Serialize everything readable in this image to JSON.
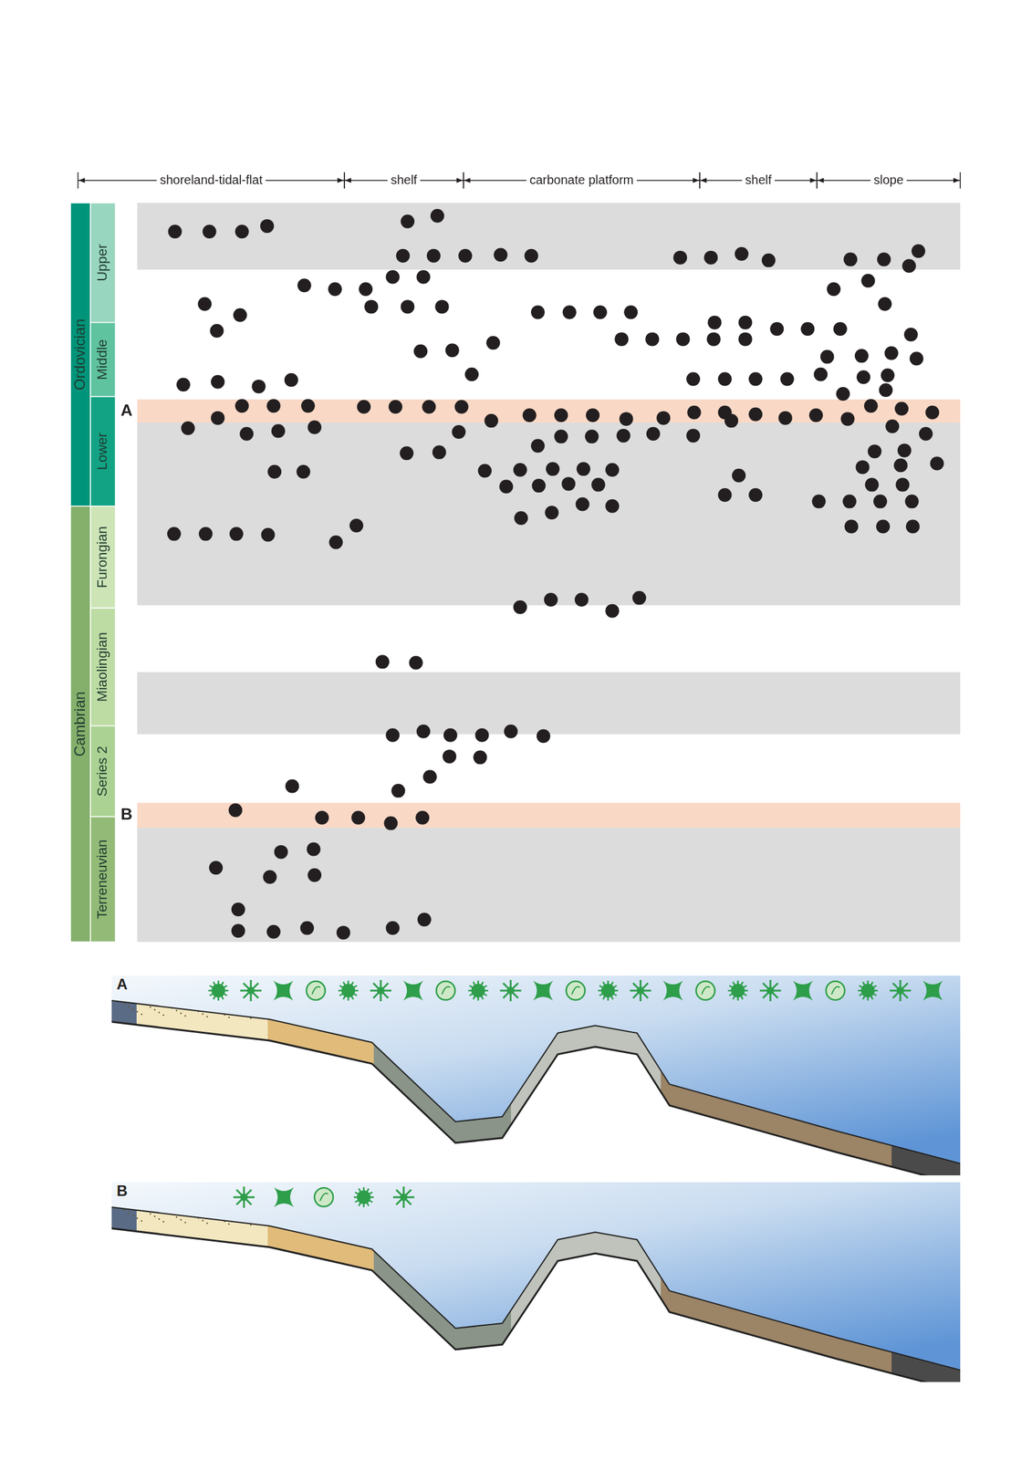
{
  "chart_data": {
    "type": "scatter",
    "tick_labels": false,
    "color": "#231f20",
    "xlim": [
      0,
      908
    ],
    "ylim": [
      0,
      797
    ],
    "zones": [
      {
        "label": "shoreland-tidal-flat",
        "from": 0,
        "to": 246
      },
      {
        "label": "shelf",
        "from": 246,
        "to": 374
      },
      {
        "label": "carbonate platform",
        "from": 374,
        "to": 628
      },
      {
        "label": "shelf",
        "from": 628,
        "to": 754
      },
      {
        "label": "slope",
        "from": 754,
        "to": 908
      }
    ],
    "systems": [
      {
        "label": "Ordovician",
        "from": 470,
        "to": 797,
        "color": "#00957a"
      },
      {
        "label": "Cambrian",
        "from": 0,
        "to": 470,
        "color": "#85b06c"
      }
    ],
    "series_units": [
      {
        "label": "Upper",
        "from": 668,
        "to": 797,
        "color": "#99d6bf"
      },
      {
        "label": "Middle",
        "from": 588,
        "to": 668,
        "color": "#5fc3a0"
      },
      {
        "label": "Lower",
        "from": 470,
        "to": 588,
        "color": "#12a384"
      },
      {
        "label": "Furongian",
        "from": 360,
        "to": 470,
        "color": "#cde5b6"
      },
      {
        "label": "Miaolingian",
        "from": 233,
        "to": 360,
        "color": "#bddca4"
      },
      {
        "label": "Series 2",
        "from": 135,
        "to": 233,
        "color": "#acd293"
      },
      {
        "label": "Terreneuvian",
        "from": 0,
        "to": 135,
        "color": "#93bb77"
      }
    ],
    "bands": [
      {
        "from": 725,
        "to": 797,
        "color": "#dcdcdc"
      },
      {
        "from": 560,
        "to": 585,
        "color": "#f9d8c6",
        "label": "A"
      },
      {
        "from": 363,
        "to": 560,
        "color": "#dcdcdc"
      },
      {
        "from": 224,
        "to": 291,
        "color": "#dcdcdc"
      },
      {
        "from": 123,
        "to": 150,
        "color": "#f9d8c6",
        "label": "B"
      },
      {
        "from": 0,
        "to": 123,
        "color": "#dcdcdc"
      }
    ],
    "x": [
      64,
      101,
      136,
      163,
      314,
      346,
      309,
      342,
      376,
      414,
      447,
      607,
      640,
      673,
      702,
      790,
      826,
      863,
      853,
      203,
      236,
      269,
      298,
      331,
      275,
      314,
      351,
      96,
      134,
      109,
      772,
      809,
      827,
      454,
      488,
      521,
      554,
      644,
      677,
      711,
      744,
      779,
      855,
      328,
      362,
      406,
      544,
      577,
      610,
      643,
      677,
      765,
      802,
      834,
      861,
      383,
      73,
      110,
      154,
      189,
      621,
      655,
      688,
      722,
      758,
      804,
      830,
      828,
      782,
      136,
      170,
      207,
      267,
      301,
      337,
      372,
      110,
      404,
      445,
      479,
      513,
      549,
      589,
      622,
      655,
      688,
      720,
      753,
      787,
      812,
      845,
      878,
      662,
      78,
      141,
      175,
      214,
      369,
      313,
      348,
      454,
      479,
      512,
      546,
      578,
      621,
      835,
      871,
      816,
      848,
      171,
      202,
      397,
      435,
      470,
      503,
      534,
      420,
      455,
      487,
      519,
      436,
      469,
      502,
      534,
      670,
      655,
      688,
      756,
      789,
      822,
      856,
      803,
      844,
      883,
      813,
      846,
      791,
      825,
      857,
      63,
      97,
      130,
      164,
      237,
      259,
      435,
      468,
      501,
      534,
      563,
      287,
      323,
      298,
      331,
      360,
      394,
      425,
      460,
      359,
      392,
      338,
      304,
      190,
      129,
      222,
      261,
      296,
      330,
      178,
      213,
      108,
      166,
      214,
      132,
      132,
      170,
      206,
      245,
      298,
      332
    ],
    "values": [
      766,
      766,
      766,
      772,
      777,
      783,
      740,
      740,
      740,
      741,
      740,
      738,
      738,
      742,
      735,
      736,
      736,
      745,
      729,
      708,
      704,
      704,
      717,
      717,
      685,
      685,
      685,
      688,
      676,
      659,
      704,
      713,
      688,
      679,
      679,
      679,
      679,
      668,
      668,
      661,
      661,
      661,
      655,
      637,
      638,
      646,
      650,
      650,
      650,
      650,
      650,
      631,
      632,
      635,
      629,
      612,
      601,
      604,
      599,
      606,
      607,
      607,
      607,
      607,
      612,
      609,
      611,
      595,
      591,
      578,
      578,
      578,
      577,
      577,
      577,
      577,
      565,
      562,
      568,
      568,
      568,
      564,
      565,
      571,
      571,
      569,
      565,
      568,
      564,
      578,
      575,
      571,
      562,
      554,
      548,
      551,
      555,
      550,
      527,
      528,
      535,
      545,
      545,
      546,
      548,
      546,
      556,
      548,
      529,
      530,
      507,
      507,
      508,
      509,
      510,
      510,
      509,
      491,
      492,
      494,
      493,
      457,
      463,
      472,
      470,
      503,
      482,
      482,
      475,
      475,
      475,
      475,
      512,
      514,
      516,
      493,
      493,
      448,
      448,
      448,
      440,
      440,
      440,
      439,
      431,
      449,
      361,
      369,
      369,
      357,
      371,
      302,
      301,
      223,
      227,
      223,
      223,
      227,
      222,
      200,
      199,
      178,
      163,
      168,
      142,
      134,
      134,
      128,
      134,
      97,
      100,
      80,
      70,
      72,
      35,
      12,
      11,
      15,
      10,
      15,
      24
    ],
    "panels": [
      {
        "label": "A",
        "icons": 23
      },
      {
        "label": "B",
        "icons": 5
      }
    ]
  }
}
